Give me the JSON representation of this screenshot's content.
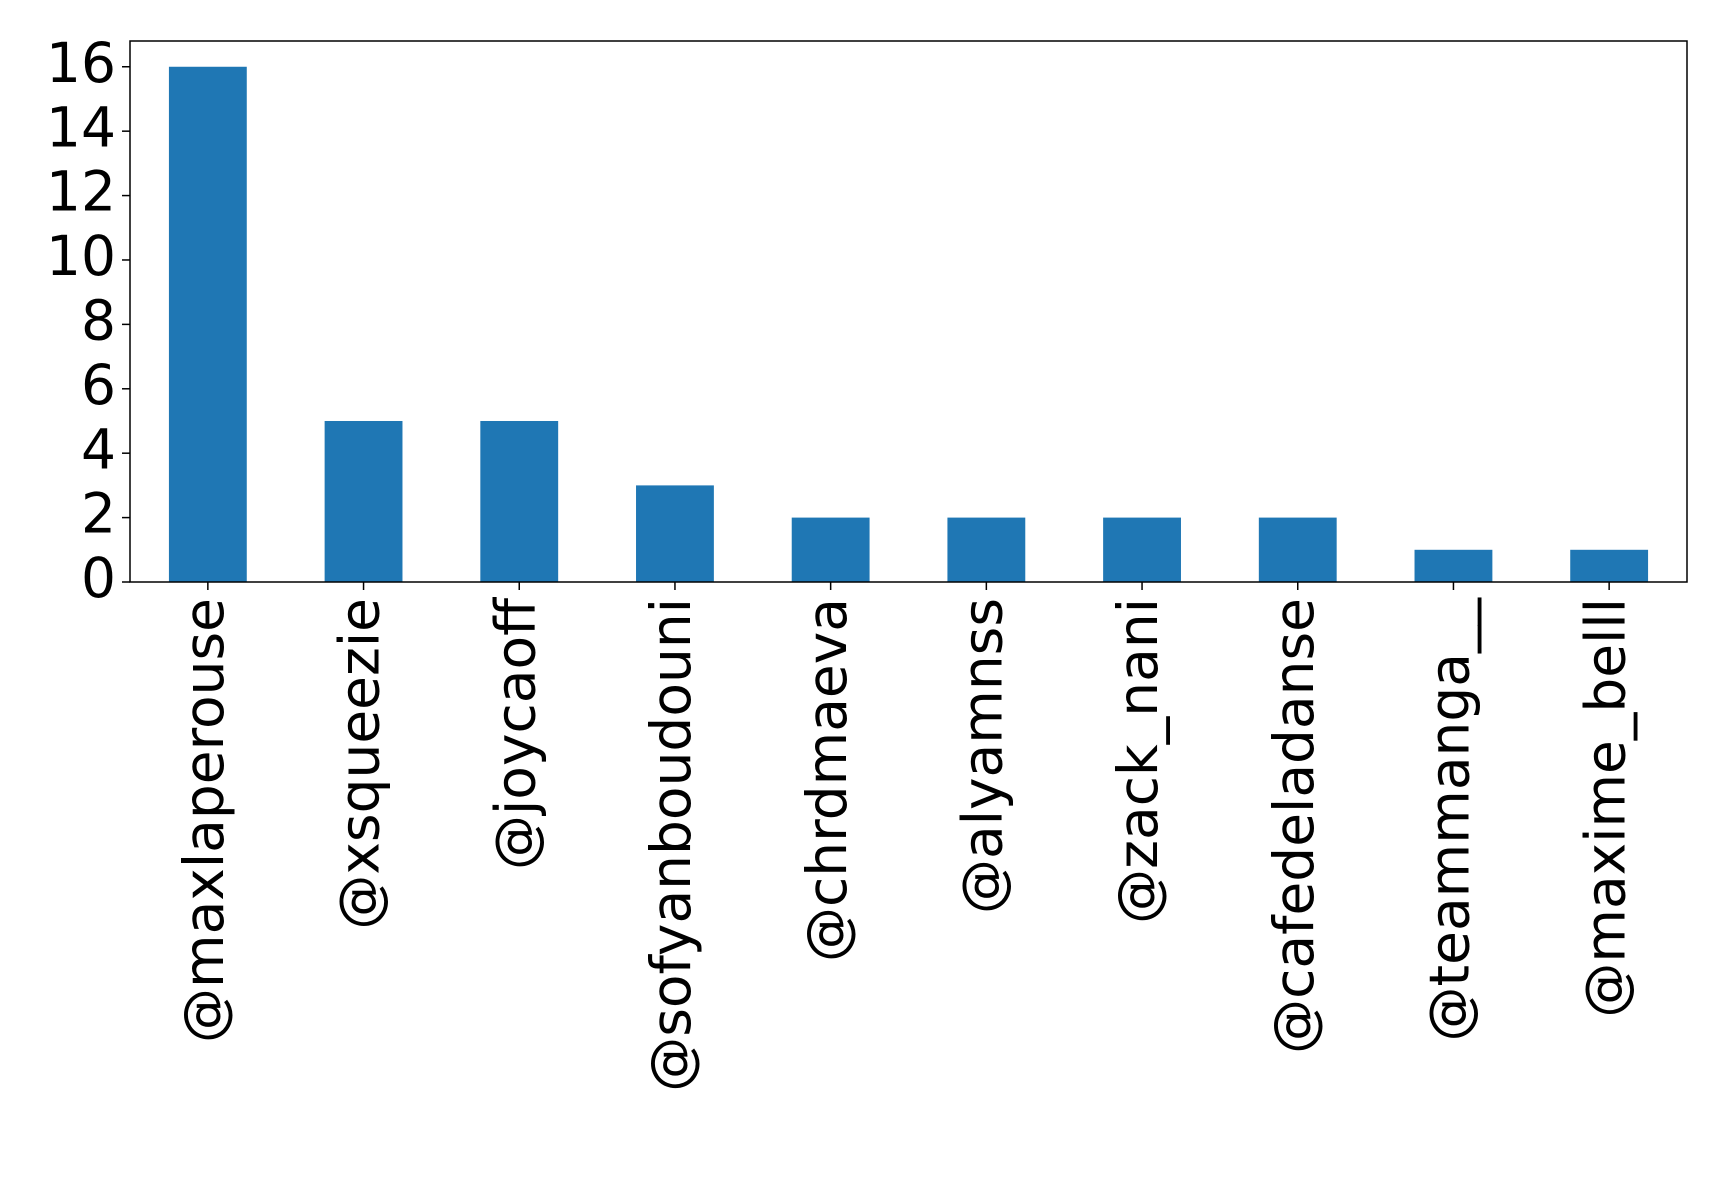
{
  "chart_data": {
    "type": "bar",
    "categories": [
      "@maxlaperouse",
      "@xsqueezie",
      "@joycaoff",
      "@sofyanboudouni",
      "@chrdmaeva",
      "@alyamnss",
      "@zack_nani",
      "@cafedeladanse",
      "@teammanga__",
      "@maxime_belll"
    ],
    "values": [
      16,
      5,
      5,
      3,
      2,
      2,
      2,
      2,
      1,
      1
    ],
    "color": "#1f77b4",
    "ylim": [
      0,
      16.8
    ],
    "yticks": [
      0,
      2,
      4,
      6,
      8,
      10,
      12,
      14,
      16
    ],
    "grid": false
  }
}
